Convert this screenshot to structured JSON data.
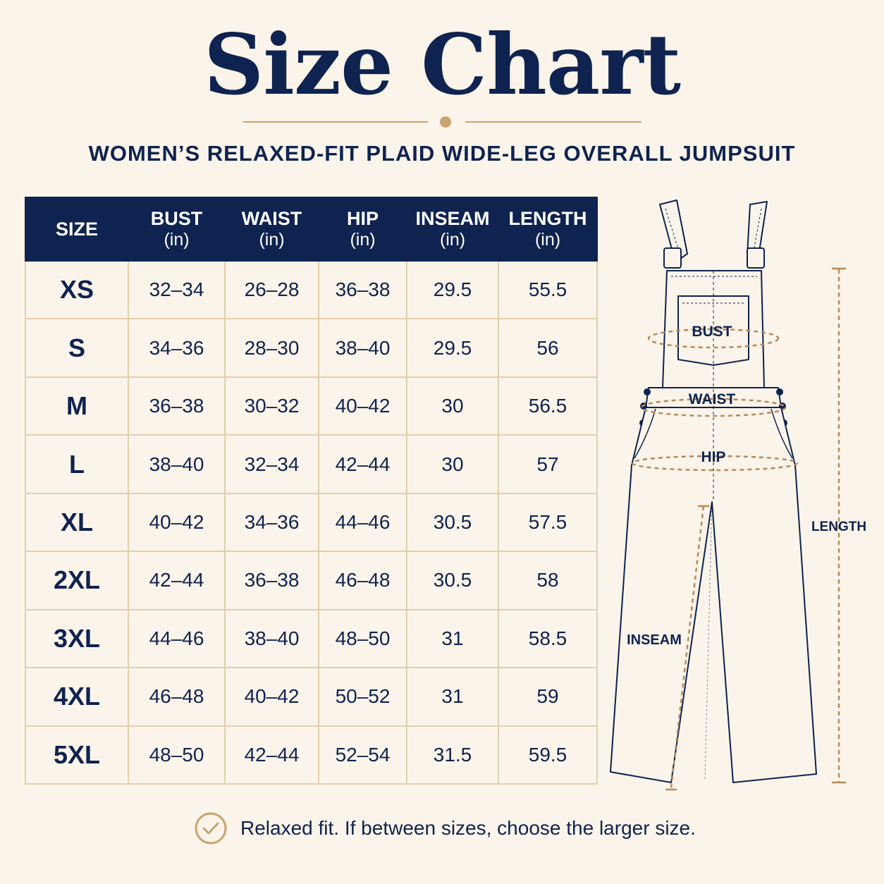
{
  "title": "Size Chart",
  "subtitle": "WOMEN’S RELAXED-FIT PLAID WIDE-LEG OVERALL JUMPSUIT",
  "colors": {
    "navy": "#0f2350",
    "gold": "#c8a46e",
    "background": "#fbf4ea"
  },
  "table": {
    "headers": [
      {
        "label": "SIZE",
        "unit": ""
      },
      {
        "label": "BUST",
        "unit": "(in)"
      },
      {
        "label": "WAIST",
        "unit": "(in)"
      },
      {
        "label": "HIP",
        "unit": "(in)"
      },
      {
        "label": "INSEAM",
        "unit": "(in)"
      },
      {
        "label": "LENGTH",
        "unit": "(in)"
      }
    ],
    "rows": [
      [
        "XS",
        "32–34",
        "26–28",
        "36–38",
        "29.5",
        "55.5"
      ],
      [
        "S",
        "34–36",
        "28–30",
        "38–40",
        "29.5",
        "56"
      ],
      [
        "M",
        "36–38",
        "30–32",
        "40–42",
        "30",
        "56.5"
      ],
      [
        "L",
        "38–40",
        "32–34",
        "42–44",
        "30",
        "57"
      ],
      [
        "XL",
        "40–42",
        "34–36",
        "44–46",
        "30.5",
        "57.5"
      ],
      [
        "2XL",
        "42–44",
        "36–38",
        "46–48",
        "30.5",
        "58"
      ],
      [
        "3XL",
        "44–46",
        "38–40",
        "48–50",
        "31",
        "58.5"
      ],
      [
        "4XL",
        "46–48",
        "40–42",
        "50–52",
        "31",
        "59"
      ],
      [
        "5XL",
        "48–50",
        "42–44",
        "52–54",
        "31.5",
        "59.5"
      ]
    ]
  },
  "diagram": {
    "labels": {
      "bust": "BUST",
      "waist": "WAIST",
      "hip": "HIP",
      "length": "LENGTH",
      "inseam": "INSEAM"
    }
  },
  "note": {
    "icon": "check-circle-icon",
    "text": "Relaxed fit. If between sizes, choose the larger size."
  }
}
